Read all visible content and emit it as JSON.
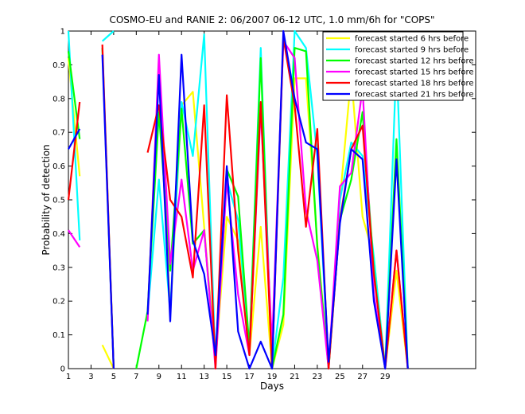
{
  "chart_data": {
    "type": "line",
    "title": "COSMO-EU and RANIE 2: 06/2007 06-12 UTC, 1.0 mm/6h for \"COPS\"",
    "xlabel": "Days",
    "ylabel": "Probability of detection",
    "xlim": [
      1,
      37
    ],
    "ylim": [
      0,
      1
    ],
    "xticks": [
      1,
      3,
      5,
      7,
      9,
      11,
      13,
      15,
      17,
      19,
      21,
      23,
      25,
      27,
      29
    ],
    "yticks": [
      0,
      0.1,
      0.2,
      0.3,
      0.4,
      0.5,
      0.6,
      0.7,
      0.8,
      0.9,
      1
    ],
    "legend_position": "top-right",
    "grid": false,
    "series": [
      {
        "name": "forecast started 6 hrs before",
        "color": "#ffff00",
        "values": [
          0.92,
          0.57,
          null,
          0.07,
          0.0,
          null,
          null,
          0.15,
          0.92,
          0.16,
          0.78,
          0.82,
          0.42,
          0.02,
          0.45,
          0.38,
          0.04,
          0.42,
          0.0,
          0.13,
          0.86,
          0.86,
          0.37,
          0.0,
          0.5,
          0.87,
          0.45,
          0.33,
          0.0,
          0.29,
          0.0
        ]
      },
      {
        "name": "forecast started 9 hrs before",
        "color": "#00ffff",
        "values": [
          1.0,
          0.38,
          null,
          0.97,
          1.0,
          null,
          null,
          0.16,
          0.56,
          0.17,
          0.79,
          0.63,
          0.99,
          0.01,
          0.56,
          0.44,
          0.06,
          0.95,
          0.0,
          0.27,
          1.0,
          0.95,
          0.63,
          0.0,
          0.5,
          0.67,
          0.63,
          0.33,
          0.0,
          0.92,
          0.0
        ]
      },
      {
        "name": "forecast started 12 hrs before",
        "color": "#00ff00",
        "values": [
          0.94,
          0.68,
          null,
          0.95,
          0.0,
          null,
          0.0,
          0.17,
          0.76,
          0.29,
          0.77,
          0.37,
          0.41,
          0.01,
          0.59,
          0.51,
          0.06,
          0.92,
          0.0,
          0.16,
          0.95,
          0.94,
          0.36,
          0.0,
          0.44,
          0.56,
          0.76,
          0.29,
          0.0,
          0.68,
          0.0
        ]
      },
      {
        "name": "forecast started 15 hrs before",
        "color": "#ff00ff",
        "values": [
          0.41,
          0.36,
          null,
          null,
          null,
          null,
          null,
          0.14,
          0.93,
          0.31,
          0.56,
          0.29,
          0.41,
          0.0,
          0.56,
          0.22,
          0.04,
          0.77,
          0.07,
          0.97,
          0.92,
          0.47,
          0.32,
          0.0,
          0.54,
          0.58,
          0.83,
          0.22,
          0.0,
          0.35,
          0.0
        ]
      },
      {
        "name": "forecast started 18 hrs before",
        "color": "#ff0000",
        "values": [
          0.5,
          0.79,
          null,
          0.96,
          0.0,
          null,
          null,
          0.64,
          0.78,
          0.5,
          0.45,
          0.27,
          0.78,
          0.0,
          0.81,
          0.35,
          0.04,
          0.79,
          0.0,
          0.98,
          0.78,
          0.42,
          0.71,
          0.0,
          0.44,
          0.65,
          0.72,
          0.28,
          0.0,
          0.35,
          0.0
        ]
      },
      {
        "name": "forecast started 21 hrs before",
        "color": "#0000ff",
        "values": [
          0.65,
          0.71,
          null,
          0.93,
          0.0,
          null,
          null,
          0.16,
          0.87,
          0.14,
          0.93,
          0.38,
          0.28,
          0.04,
          0.6,
          0.11,
          0.0,
          0.08,
          0.0,
          1.0,
          0.8,
          0.67,
          0.65,
          0.02,
          0.43,
          0.65,
          0.62,
          0.2,
          0.0,
          0.62,
          0.0
        ]
      }
    ]
  }
}
